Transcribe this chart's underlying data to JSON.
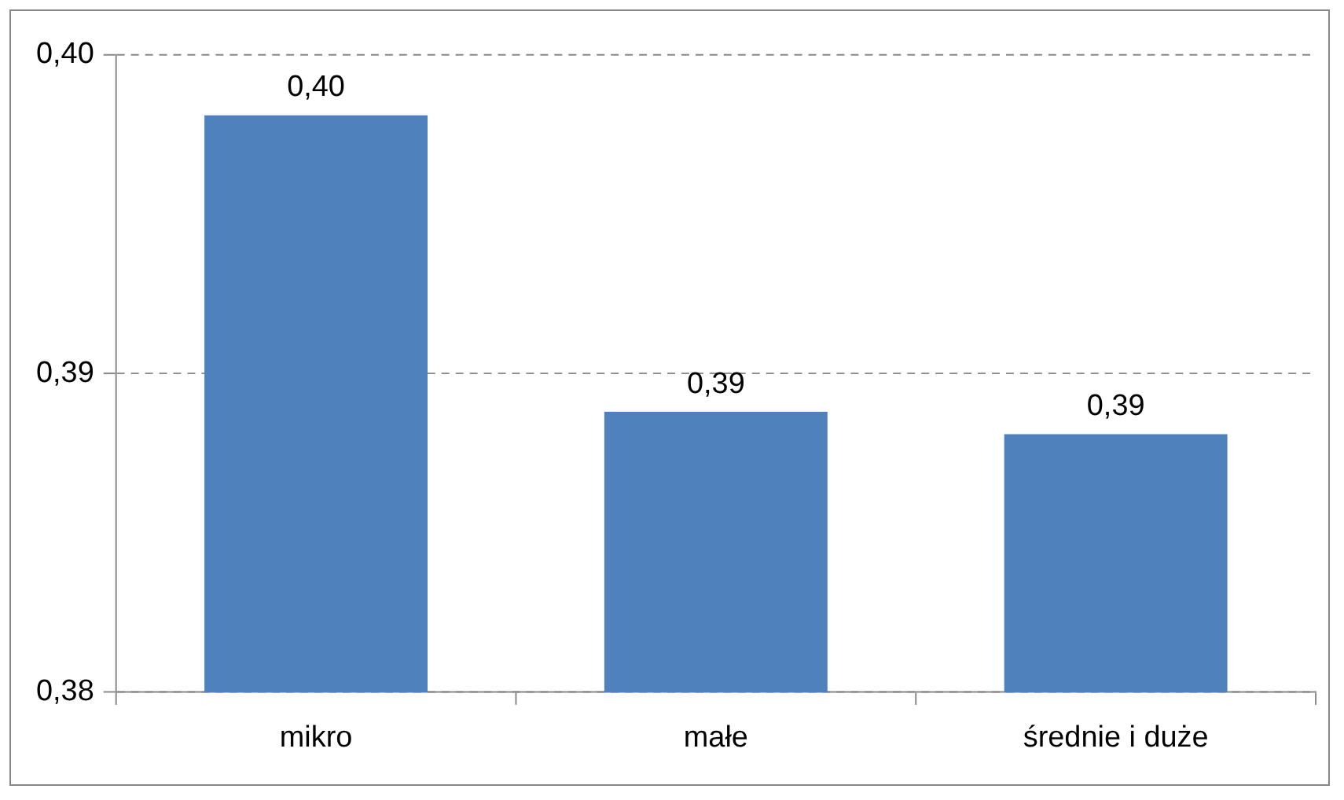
{
  "chart_data": {
    "type": "bar",
    "categories": [
      "mikro",
      "małe",
      "średnie i duże"
    ],
    "values": [
      0.3981,
      0.3888,
      0.3881
    ],
    "value_labels": [
      "0,40",
      "0,39",
      "0,39"
    ],
    "color": "#4f81bd",
    "ylim": [
      0.38,
      0.4
    ],
    "yticks": [
      {
        "value": 0.38,
        "label": "0,38"
      },
      {
        "value": 0.39,
        "label": "0,39"
      },
      {
        "value": 0.4,
        "label": "0,40"
      }
    ],
    "grid": "y",
    "legend": false
  }
}
